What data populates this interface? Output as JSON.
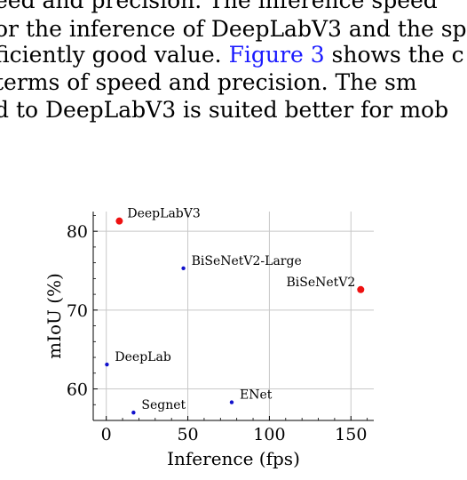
{
  "paragraph": {
    "line1": "eed and precision. The inference speed",
    "line2": "or the inference of DeepLabV3 and the sp",
    "line3_pre": "ficiently good value. ",
    "line3_link": "Figure 3",
    "line3_post": " shows the c",
    "line4": " terms of speed and precision. The sm",
    "line5": "d to DeepLabV3 is suited better for mob"
  },
  "chart_data": {
    "type": "scatter",
    "xlabel": "Inference (fps)",
    "ylabel": "mIoU (%)",
    "xlim": [
      -8,
      164
    ],
    "ylim": [
      56,
      82.5
    ],
    "xticks": [
      0,
      50,
      100,
      150
    ],
    "yticks": [
      60,
      70,
      80
    ],
    "grid": true,
    "points": [
      {
        "label": "DeepLabV3",
        "x": 8,
        "y": 81.3,
        "color": "#ee1111",
        "size": "large"
      },
      {
        "label": "BiSeNetV2-Large",
        "x": 47.3,
        "y": 75.3,
        "color": "#1111cc",
        "size": "small"
      },
      {
        "label": "BiSeNetV2",
        "x": 156,
        "y": 72.6,
        "color": "#ee1111",
        "size": "large"
      },
      {
        "label": "DeepLab",
        "x": 0.4,
        "y": 63.1,
        "color": "#1111cc",
        "size": "small"
      },
      {
        "label": "ENet",
        "x": 76.9,
        "y": 58.3,
        "color": "#1111cc",
        "size": "small"
      },
      {
        "label": "Segnet",
        "x": 16.7,
        "y": 57.0,
        "color": "#1111cc",
        "size": "small"
      }
    ]
  }
}
